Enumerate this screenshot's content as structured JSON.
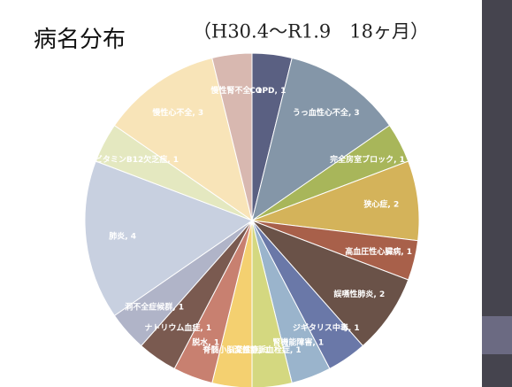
{
  "chart_data": {
    "type": "pie",
    "title": "病名分布",
    "subtitle": "（H30.4〜R1.9　18ヶ月）",
    "values": [
      1,
      3,
      1,
      2,
      1,
      2,
      1,
      1,
      1,
      1,
      1,
      1,
      1,
      4,
      1,
      3,
      1
    ],
    "value_labels": [
      "COPD, 1",
      "うっ血性心不全, 3",
      "完全房室ブロック, 1",
      "狭心症, 2",
      "高血圧性心臓病, 1",
      "誤嚥性肺炎, 2",
      "ジギタリス中毒, 1",
      "腎機能障害, 1",
      "深部静脈血栓症, 1",
      "脊髄小脳変性症, 1",
      "脱水, 1",
      "ナトリウム血症, 1",
      "洞不全症候群, 1",
      "肺炎, 4",
      "ビタミンB12欠乏症, 1",
      "慢性心不全, 3",
      "慢性腎不全, 1"
    ],
    "colors": [
      "#5a6082",
      "#8496a8",
      "#a8b65a",
      "#d4b35a",
      "#a8604a",
      "#6a5248",
      "#6a78a8",
      "#9ab4cc",
      "#d4d880",
      "#f4d070",
      "#c88070",
      "#7a5a50",
      "#b0b4c8",
      "#c8d0e0",
      "#e4e8c0",
      "#f8e4b8",
      "#d8b8b0"
    ]
  }
}
